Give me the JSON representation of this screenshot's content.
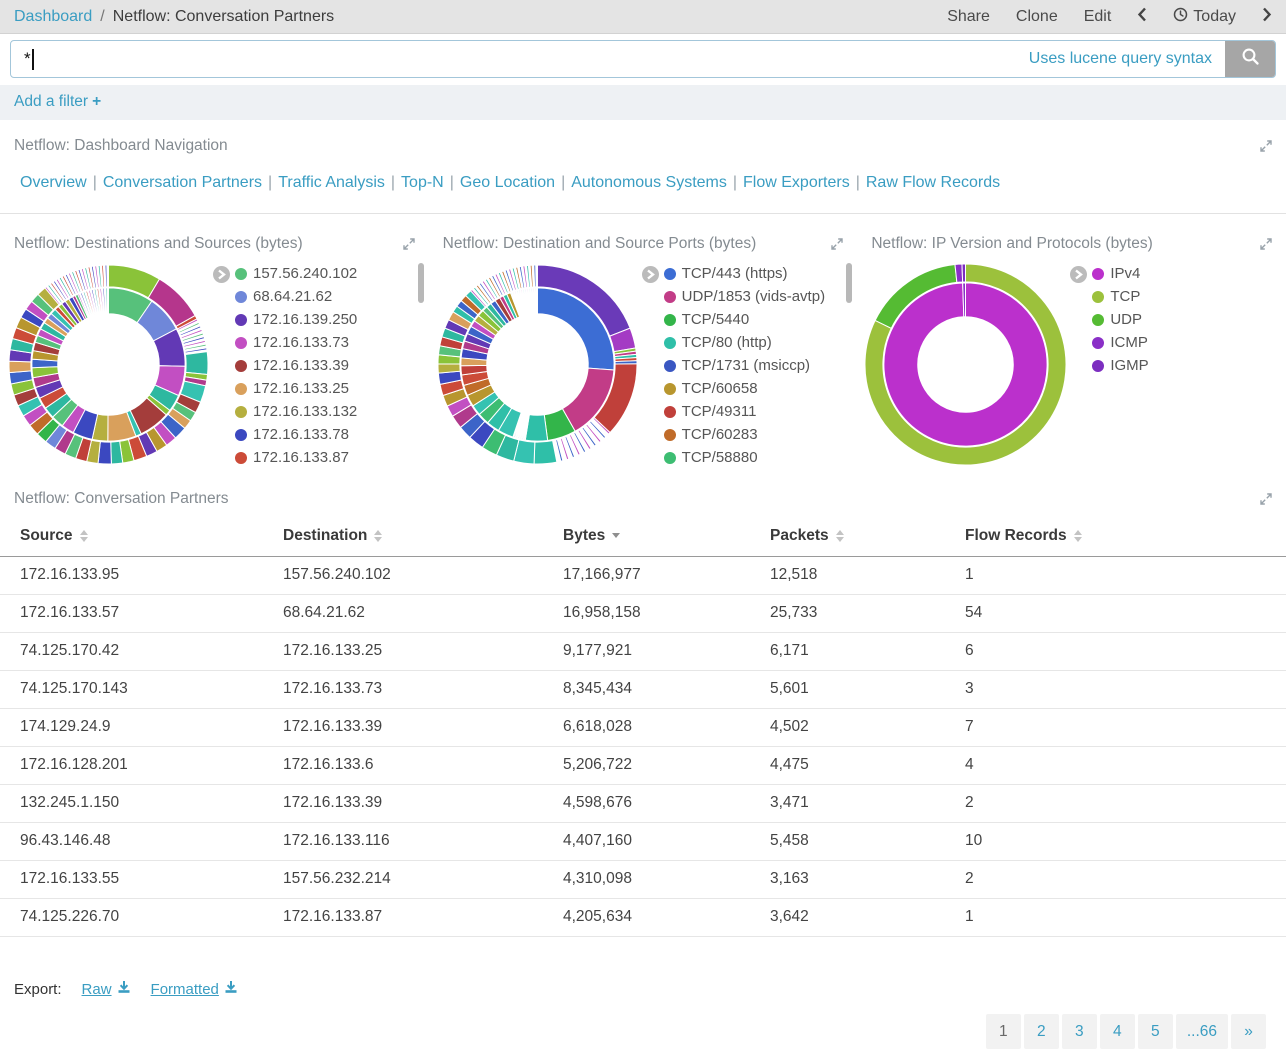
{
  "header": {
    "breadcrumb_root": "Dashboard",
    "breadcrumb_separator": "/",
    "title": "Netflow: Conversation Partners",
    "actions": {
      "share": "Share",
      "clone": "Clone",
      "edit": "Edit"
    },
    "time_label": "Today"
  },
  "search": {
    "value": "*",
    "hint": "Uses lucene query syntax"
  },
  "filter_bar": {
    "label": "Add a filter",
    "plus_icon": "+"
  },
  "nav_panel": {
    "title": "Netflow: Dashboard Navigation",
    "links": [
      "Overview",
      "Conversation Partners",
      "Traffic Analysis",
      "Top-N",
      "Geo Location",
      "Autonomous Systems",
      "Flow Exporters",
      "Raw Flow Records"
    ]
  },
  "chart_data": [
    {
      "type": "sunburst",
      "title": "Netflow: Destinations and Sources (bytes)",
      "scrollbar": true,
      "legend": [
        {
          "label": "157.56.240.102",
          "color": "#57c17b"
        },
        {
          "label": "68.64.21.62",
          "color": "#6f87d9"
        },
        {
          "label": "172.16.139.250",
          "color": "#6239b5"
        },
        {
          "label": "172.16.133.73",
          "color": "#c24fc2"
        },
        {
          "label": "172.16.133.39",
          "color": "#a43d3b"
        },
        {
          "label": "172.16.133.25",
          "color": "#d9a05c"
        },
        {
          "label": "172.16.133.132",
          "color": "#b5af3f"
        },
        {
          "label": "172.16.133.78",
          "color": "#3b48c0"
        },
        {
          "label": "172.16.133.87",
          "color": "#cc4b38"
        }
      ],
      "rings": [
        {
          "r0": 51,
          "r1": 77,
          "segments": [
            {
              "c": "#57c17b",
              "v": 32
            },
            {
              "c": "#6f87d9",
              "v": 26
            },
            {
              "c": "#6239b5",
              "v": 27
            },
            {
              "c": "#c24fc2",
              "v": 21
            },
            {
              "c": "#2eb8a0",
              "v": 12
            },
            {
              "c": "#8ac339",
              "v": 4
            },
            {
              "c": "#a43d3b",
              "v": 22
            },
            {
              "c": "#35c2b1",
              "v": 4
            },
            {
              "c": "#d9a05c",
              "v": 20
            },
            {
              "c": "#b5af3f",
              "v": 11
            },
            {
              "c": "#3b48c0",
              "v": 14
            },
            {
              "c": "#c24fc2",
              "v": 9
            },
            {
              "c": "#57c17b",
              "v": 9
            },
            {
              "c": "#2eb8a0",
              "v": 8
            },
            {
              "c": "#cc4b38",
              "v": 8
            },
            {
              "c": "#6239b5",
              "v": 8
            },
            {
              "c": "#b03a8c",
              "v": 7
            },
            {
              "c": "#8ac339",
              "v": 7
            },
            {
              "c": "#3c64c8",
              "v": 6
            },
            {
              "c": "#b8962e",
              "v": 6
            },
            {
              "c": "#a43d3b",
              "v": 6
            },
            {
              "c": "#57c17b",
              "v": 5
            },
            {
              "c": "#c24fc2",
              "v": 5
            },
            {
              "c": "#2eb8a0",
              "v": 5
            },
            {
              "c": "#d9a05c",
              "v": 4
            },
            {
              "c": "#6f87d9",
              "v": 4
            },
            {
              "c": "#35c2b1",
              "v": 4
            },
            {
              "c": "#cc4b38",
              "v": 3
            },
            {
              "c": "#8ac339",
              "v": 3
            },
            {
              "c": "#6239b5",
              "v": 3
            },
            {
              "c": "#b5af3f",
              "v": 3
            },
            {
              "c": "#3b48c0",
              "v": 3
            },
            {
              "c": "#b03a8c",
              "v": 2
            },
            {
              "c": "#57c17b",
              "v": 2
            },
            {
              "repeat": 22,
              "colors": [
                "#c24fc2",
                "#ffffff",
                "#3b48c0",
                "#ffffff",
                "#2eb8a0",
                "#ffffff",
                "#cc4b38",
                "#ffffff"
              ],
              "v": 1
            }
          ]
        },
        {
          "r0": 78,
          "r1": 100,
          "segments": [
            {
              "c": "#8ac339",
              "v": 28
            },
            {
              "c": "#b5368c",
              "v": 27
            },
            {
              "c": "#cc4b38",
              "v": 2
            },
            {
              "repeat": 18,
              "colors": [
                "#c24fc2",
                "#ffffff",
                "#57c17b",
                "#ffffff",
                "#3b48c0",
                "#ffffff"
              ],
              "v": 1
            },
            {
              "c": "#2eb8a0",
              "v": 12
            },
            {
              "c": "#8ac339",
              "v": 3
            },
            {
              "c": "#b03a8c",
              "v": 3
            },
            {
              "c": "#35c2b1",
              "v": 9
            },
            {
              "c": "#a43d3b",
              "v": 6
            },
            {
              "c": "#57c17b",
              "v": 5
            },
            {
              "c": "#d9a05c",
              "v": 5
            },
            {
              "c": "#3c64c8",
              "v": 7
            },
            {
              "c": "#c24fc2",
              "v": 6
            },
            {
              "c": "#b8962e",
              "v": 6
            },
            {
              "c": "#6239b5",
              "v": 6
            },
            {
              "c": "#cc4b38",
              "v": 7
            },
            {
              "c": "#8ac339",
              "v": 6
            },
            {
              "c": "#2eb8a0",
              "v": 6
            },
            {
              "c": "#3b48c0",
              "v": 7
            },
            {
              "c": "#b5af3f",
              "v": 6
            },
            {
              "c": "#c0403a",
              "v": 6
            },
            {
              "c": "#57c17b",
              "v": 6
            },
            {
              "c": "#b03a8c",
              "v": 6
            },
            {
              "c": "#6f87d9",
              "v": 6
            },
            {
              "c": "#33b54a",
              "v": 6
            },
            {
              "c": "#c06b29",
              "v": 6
            },
            {
              "c": "#c24fc2",
              "v": 6
            },
            {
              "c": "#35c2b1",
              "v": 6
            },
            {
              "c": "#a43d3b",
              "v": 6
            },
            {
              "c": "#8ac339",
              "v": 6
            },
            {
              "c": "#3c64c8",
              "v": 6
            },
            {
              "c": "#d9a05c",
              "v": 6
            },
            {
              "c": "#6239b5",
              "v": 6
            },
            {
              "c": "#2eb8a0",
              "v": 6
            },
            {
              "c": "#cc4b38",
              "v": 6
            },
            {
              "c": "#b8962e",
              "v": 6
            },
            {
              "c": "#3b48c0",
              "v": 5
            },
            {
              "c": "#c24fc2",
              "v": 5
            },
            {
              "c": "#57c17b",
              "v": 5
            },
            {
              "c": "#b5af3f",
              "v": 5
            },
            {
              "repeat": 40,
              "colors": [
                "#c24fc2",
                "#ffffff",
                "#2eb8a0",
                "#ffffff",
                "#cc4b38",
                "#ffffff",
                "#3b48c0",
                "#ffffff"
              ],
              "v": 0.9
            }
          ]
        }
      ]
    },
    {
      "type": "sunburst",
      "title": "Netflow: Destination and Source Ports (bytes)",
      "scrollbar": true,
      "legend": [
        {
          "label": "TCP/443 (https)",
          "color": "#3c6dd4"
        },
        {
          "label": "UDP/1853 (vids-avtp)",
          "color": "#c23c87"
        },
        {
          "label": "TCP/5440",
          "color": "#33b54a"
        },
        {
          "label": "TCP/80 (http)",
          "color": "#2fbfa8"
        },
        {
          "label": "TCP/1731 (msiccp)",
          "color": "#3a57c2"
        },
        {
          "label": "TCP/60658",
          "color": "#b8962e"
        },
        {
          "label": "TCP/49311",
          "color": "#c0403a"
        },
        {
          "label": "TCP/60283",
          "color": "#c06b29"
        },
        {
          "label": "TCP/58880",
          "color": "#3dbd72"
        }
      ],
      "rings": [
        {
          "r0": 51,
          "r1": 77,
          "segments": [
            {
              "c": "#3c6dd4",
              "v": 95
            },
            {
              "c": "#c23c87",
              "v": 57
            },
            {
              "c": "#33b54a",
              "v": 22
            },
            {
              "c": "#2fbfa8",
              "v": 17
            },
            {
              "repeat": 12,
              "colors": [
                "#b5af3f",
                "#ffffff",
                "#3a57c2",
                "#ffffff"
              ],
              "v": 0.8
            },
            {
              "c": "#35c2b1",
              "v": 12
            },
            {
              "c": "#2fbfa8",
              "v": 10
            },
            {
              "c": "#3dbd72",
              "v": 9
            },
            {
              "c": "#35c2b1",
              "v": 8
            },
            {
              "c": "#b8962e",
              "v": 9
            },
            {
              "c": "#c06b29",
              "v": 8
            },
            {
              "c": "#cc4b38",
              "v": 8
            },
            {
              "c": "#c0403a",
              "v": 7
            },
            {
              "c": "#d9a05c",
              "v": 6
            },
            {
              "c": "#3b48c0",
              "v": 7
            },
            {
              "c": "#b03a8c",
              "v": 6
            },
            {
              "c": "#6239b5",
              "v": 6
            },
            {
              "c": "#3c64c8",
              "v": 6
            },
            {
              "c": "#c24fc2",
              "v": 5
            },
            {
              "c": "#b5af3f",
              "v": 5
            },
            {
              "c": "#8ac339",
              "v": 5
            },
            {
              "c": "#57c17b",
              "v": 4
            },
            {
              "c": "#2eb8a0",
              "v": 4
            },
            {
              "c": "#3c64c8",
              "v": 4
            },
            {
              "c": "#a43d3b",
              "v": 4
            },
            {
              "c": "#c23c87",
              "v": 3
            },
            {
              "c": "#2fbfa8",
              "v": 3
            },
            {
              "c": "#b8962e",
              "v": 3
            },
            {
              "repeat": 26,
              "colors": [
                "#2fbfa8",
                "#ffffff",
                "#3c64c8",
                "#ffffff",
                "#c24fc2",
                "#ffffff"
              ],
              "v": 0.8
            }
          ]
        },
        {
          "r0": 78,
          "r1": 100,
          "segments": [
            {
              "c": "#6a3ab8",
              "v": 52
            },
            {
              "c": "#a43bc4",
              "v": 9
            },
            {
              "c": "#8ac339",
              "v": 1.4
            },
            {
              "c": "#c23c87",
              "v": 1.4
            },
            {
              "c": "#2fbfa8",
              "v": 1.4
            },
            {
              "c": "#cc4b38",
              "v": 1.4
            },
            {
              "c": "#3c64c8",
              "v": 1.4
            },
            {
              "c": "#c0403a",
              "v": 33
            },
            {
              "repeat": 30,
              "colors": [
                "#c24fc2",
                "#ffffff",
                "#ffffff",
                "#3c64c8",
                "#ffffff",
                "#ffffff"
              ],
              "v": 0.9
            },
            {
              "c": "#2fbfa8",
              "v": 10
            },
            {
              "c": "#35c2b1",
              "v": 9
            },
            {
              "c": "#2eb8a0",
              "v": 8
            },
            {
              "c": "#3dbd72",
              "v": 7
            },
            {
              "c": "#3b48c0",
              "v": 7
            },
            {
              "c": "#3c64c8",
              "v": 6
            },
            {
              "c": "#b03a8c",
              "v": 6
            },
            {
              "c": "#c24fc2",
              "v": 5
            },
            {
              "c": "#b8962e",
              "v": 5
            },
            {
              "c": "#cc4b38",
              "v": 5
            },
            {
              "c": "#3b48c0",
              "v": 5
            },
            {
              "c": "#b5af3f",
              "v": 4
            },
            {
              "c": "#8ac339",
              "v": 4
            },
            {
              "c": "#57c17b",
              "v": 4
            },
            {
              "c": "#c0403a",
              "v": 4
            },
            {
              "c": "#2eb8a0",
              "v": 4
            },
            {
              "c": "#6239b5",
              "v": 4
            },
            {
              "c": "#d9a05c",
              "v": 4
            },
            {
              "c": "#2fbfa8",
              "v": 3
            },
            {
              "c": "#3c64c8",
              "v": 3
            },
            {
              "c": "#c06b29",
              "v": 3
            },
            {
              "c": "#35c2b1",
              "v": 3
            },
            {
              "repeat": 40,
              "colors": [
                "#c24fc2",
                "#ffffff",
                "#2fbfa8",
                "#ffffff",
                "#c06b29",
                "#ffffff",
                "#3c64c8",
                "#ffffff"
              ],
              "v": 0.8
            }
          ]
        }
      ]
    },
    {
      "type": "sunburst",
      "title": "Netflow: IP Version and Protocols (bytes)",
      "scrollbar": false,
      "legend": [
        {
          "label": "IPv4",
          "color": "#bb30cc"
        },
        {
          "label": "TCP",
          "color": "#9cc13c"
        },
        {
          "label": "UDP",
          "color": "#55bb33"
        },
        {
          "label": "ICMP",
          "color": "#8a2fc7"
        },
        {
          "label": "IGMP",
          "color": "#7c2ec0"
        }
      ],
      "rings": [
        {
          "r0": 48,
          "r1": 82,
          "segments": [
            {
              "c": "#bb30cc",
              "v": 358
            },
            {
              "c": "#8a2fc7",
              "v": 2
            }
          ]
        },
        {
          "r0": 83,
          "r1": 101,
          "segments": [
            {
              "c": "#9cc13c",
              "v": 296
            },
            {
              "c": "#55bb33",
              "v": 58
            },
            {
              "c": "#8a2fc7",
              "v": 4
            },
            {
              "c": "#7c2ec0",
              "v": 2
            }
          ]
        }
      ]
    }
  ],
  "table_panel": {
    "title": "Netflow: Conversation Partners",
    "columns": [
      {
        "label": "Source",
        "sort": "both"
      },
      {
        "label": "Destination",
        "sort": "both"
      },
      {
        "label": "Bytes",
        "sort": "desc"
      },
      {
        "label": "Packets",
        "sort": "both"
      },
      {
        "label": "Flow Records",
        "sort": "both"
      }
    ],
    "rows": [
      [
        "172.16.133.95",
        "157.56.240.102",
        "17,166,977",
        "12,518",
        "1"
      ],
      [
        "172.16.133.57",
        "68.64.21.62",
        "16,958,158",
        "25,733",
        "54"
      ],
      [
        "74.125.170.42",
        "172.16.133.25",
        "9,177,921",
        "6,171",
        "6"
      ],
      [
        "74.125.170.143",
        "172.16.133.73",
        "8,345,434",
        "5,601",
        "3"
      ],
      [
        "174.129.24.9",
        "172.16.133.39",
        "6,618,028",
        "4,502",
        "7"
      ],
      [
        "172.16.128.201",
        "172.16.133.6",
        "5,206,722",
        "4,475",
        "4"
      ],
      [
        "132.245.1.150",
        "172.16.133.39",
        "4,598,676",
        "3,471",
        "2"
      ],
      [
        "96.43.146.48",
        "172.16.133.116",
        "4,407,160",
        "5,458",
        "10"
      ],
      [
        "172.16.133.55",
        "157.56.232.214",
        "4,310,098",
        "3,163",
        "2"
      ],
      [
        "74.125.226.70",
        "172.16.133.87",
        "4,205,634",
        "3,642",
        "1"
      ]
    ]
  },
  "export": {
    "label": "Export:",
    "raw": "Raw",
    "formatted": "Formatted"
  },
  "pagination": {
    "pages": [
      "1",
      "2",
      "3",
      "4",
      "5",
      "...66",
      "»"
    ],
    "current_index": 0
  }
}
